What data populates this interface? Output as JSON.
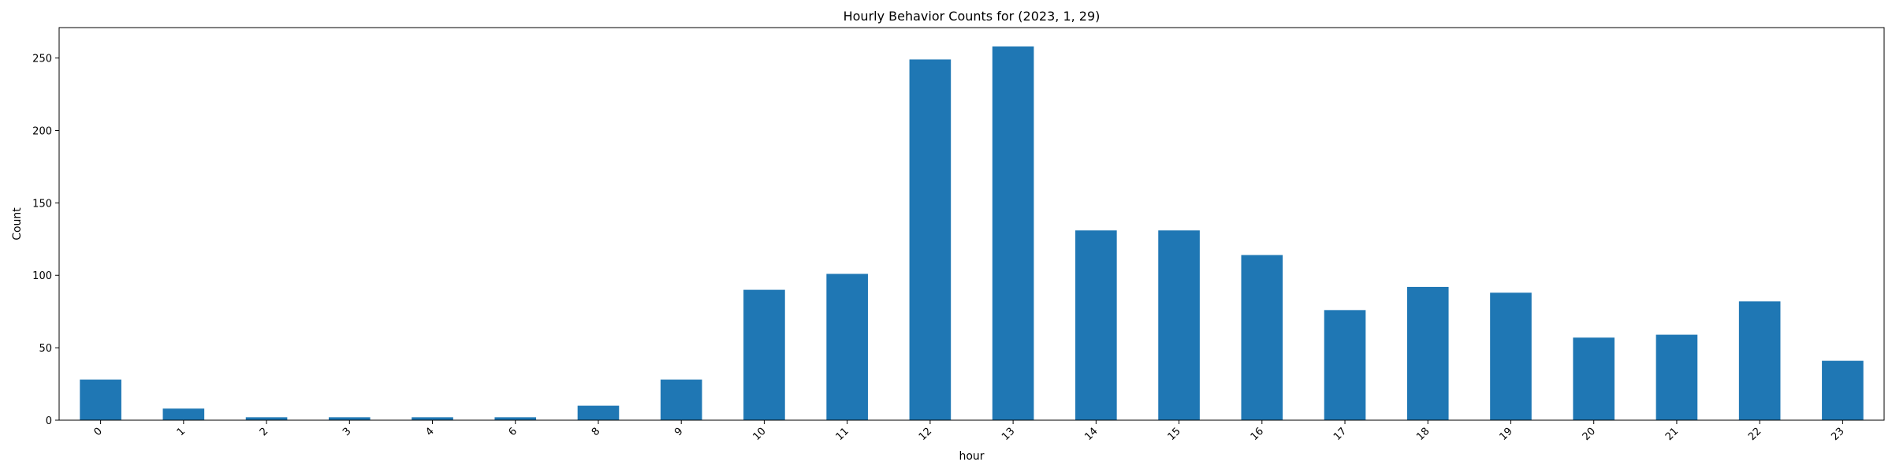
{
  "chart_data": {
    "type": "bar",
    "title": "Hourly Behavior Counts for (2023, 1, 29)",
    "xlabel": "hour",
    "ylabel": "Count",
    "categories": [
      "0",
      "1",
      "2",
      "3",
      "4",
      "6",
      "8",
      "9",
      "10",
      "11",
      "12",
      "13",
      "14",
      "15",
      "16",
      "17",
      "18",
      "19",
      "20",
      "21",
      "22",
      "23"
    ],
    "values": [
      28,
      8,
      2,
      2,
      2,
      2,
      10,
      28,
      90,
      101,
      249,
      258,
      131,
      131,
      114,
      76,
      92,
      88,
      57,
      59,
      82,
      41
    ],
    "ylim": [
      0,
      271
    ],
    "yticks": [
      0,
      50,
      100,
      150,
      200,
      250
    ],
    "grid": false,
    "legend": "none",
    "bar_color": "#1f77b4"
  }
}
